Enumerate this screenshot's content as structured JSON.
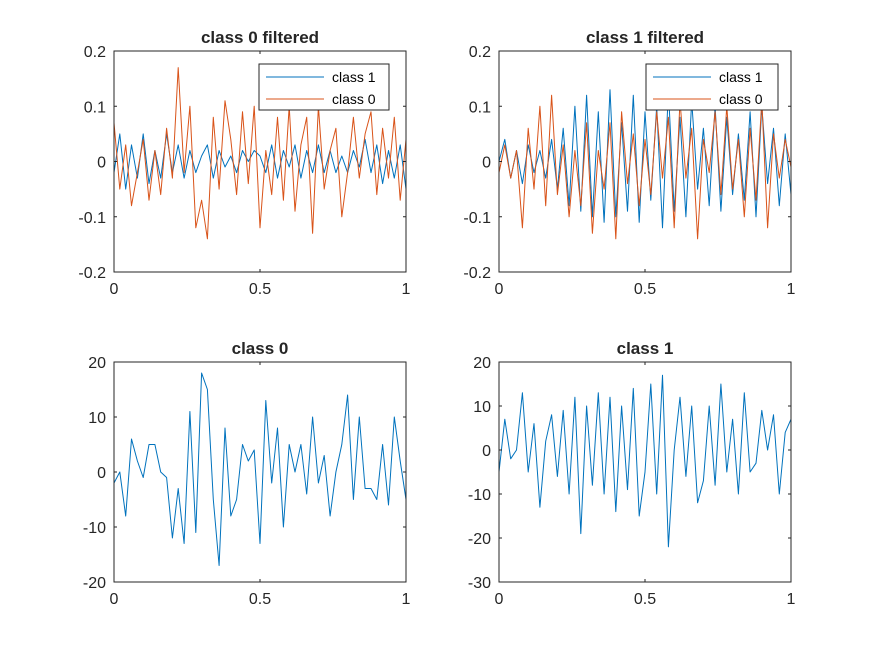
{
  "colors": {
    "class1": "#0072BD",
    "class0": "#D95319",
    "axis": "#262626"
  },
  "chart_data": [
    {
      "type": "line",
      "title": "class 0 filtered",
      "xlabel": "",
      "ylabel": "",
      "xlim": [
        0,
        1
      ],
      "ylim": [
        -0.2,
        0.2
      ],
      "xticks": [
        0,
        0.5,
        1
      ],
      "xtick_labels": [
        "0",
        "0.5",
        "1"
      ],
      "yticks": [
        -0.2,
        -0.1,
        0,
        0.1,
        0.2
      ],
      "ytick_labels": [
        "-0.2",
        "-0.1",
        "0",
        "0.1",
        "0.2"
      ],
      "legend": {
        "placement": "top-right",
        "entries": [
          "class 1",
          "class 0"
        ]
      },
      "series": [
        {
          "name": "class 1",
          "color": "#0072BD",
          "x": [
            0,
            0.02,
            0.04,
            0.06,
            0.08,
            0.1,
            0.12,
            0.14,
            0.16,
            0.18,
            0.2,
            0.22,
            0.24,
            0.26,
            0.28,
            0.3,
            0.32,
            0.34,
            0.36,
            0.38,
            0.4,
            0.42,
            0.44,
            0.46,
            0.48,
            0.5,
            0.52,
            0.54,
            0.56,
            0.58,
            0.6,
            0.62,
            0.64,
            0.66,
            0.68,
            0.7,
            0.72,
            0.74,
            0.76,
            0.78,
            0.8,
            0.82,
            0.84,
            0.86,
            0.88,
            0.9,
            0.92,
            0.94,
            0.96,
            0.98,
            1
          ],
          "y": [
            -0.02,
            0.05,
            -0.05,
            0.03,
            -0.03,
            0.05,
            -0.04,
            0.02,
            -0.03,
            0.05,
            -0.02,
            0.03,
            -0.03,
            0.02,
            -0.02,
            0.01,
            0.03,
            -0.03,
            0.02,
            -0.01,
            0.01,
            -0.02,
            0.02,
            0.0,
            0.02,
            0.01,
            -0.02,
            0.03,
            -0.03,
            0.02,
            -0.01,
            0.03,
            -0.03,
            0.02,
            -0.02,
            0.03,
            -0.02,
            0.02,
            -0.02,
            0.01,
            -0.02,
            0.02,
            -0.01,
            0.04,
            -0.02,
            0.03,
            -0.04,
            0.02,
            -0.03,
            0.03,
            -0.05
          ]
        },
        {
          "name": "class 0",
          "color": "#D95319",
          "x": [
            0,
            0.02,
            0.04,
            0.06,
            0.08,
            0.1,
            0.12,
            0.14,
            0.16,
            0.18,
            0.2,
            0.22,
            0.24,
            0.26,
            0.28,
            0.3,
            0.32,
            0.34,
            0.36,
            0.38,
            0.4,
            0.42,
            0.44,
            0.46,
            0.48,
            0.5,
            0.52,
            0.54,
            0.56,
            0.58,
            0.6,
            0.62,
            0.64,
            0.66,
            0.68,
            0.7,
            0.72,
            0.74,
            0.76,
            0.78,
            0.8,
            0.82,
            0.84,
            0.86,
            0.88,
            0.9,
            0.92,
            0.94,
            0.96,
            0.98,
            1
          ],
          "y": [
            0.07,
            -0.05,
            0.03,
            -0.08,
            -0.02,
            0.04,
            -0.07,
            0.02,
            -0.06,
            0.06,
            -0.03,
            0.17,
            -0.02,
            0.1,
            -0.12,
            -0.07,
            -0.14,
            0.08,
            -0.05,
            0.11,
            0.04,
            -0.06,
            0.09,
            -0.04,
            0.1,
            -0.12,
            0.02,
            -0.06,
            0.08,
            -0.07,
            0.1,
            -0.09,
            0.03,
            0.08,
            -0.13,
            0.1,
            -0.05,
            0.02,
            0.06,
            -0.1,
            -0.02,
            0.08,
            -0.03,
            0.05,
            0.09,
            -0.06,
            0.06,
            -0.03,
            0.08,
            -0.07,
            0.04
          ]
        }
      ]
    },
    {
      "type": "line",
      "title": "class 1 filtered",
      "xlabel": "",
      "ylabel": "",
      "xlim": [
        0,
        1
      ],
      "ylim": [
        -0.2,
        0.2
      ],
      "xticks": [
        0,
        0.5,
        1
      ],
      "xtick_labels": [
        "0",
        "0.5",
        "1"
      ],
      "yticks": [
        -0.2,
        -0.1,
        0,
        0.1,
        0.2
      ],
      "ytick_labels": [
        "-0.2",
        "-0.1",
        "0",
        "0.1",
        "0.2"
      ],
      "legend": {
        "placement": "top-right",
        "entries": [
          "class 1",
          "class 0"
        ]
      },
      "series": [
        {
          "name": "class 1",
          "color": "#0072BD",
          "x": [
            0,
            0.02,
            0.04,
            0.06,
            0.08,
            0.1,
            0.12,
            0.14,
            0.16,
            0.18,
            0.2,
            0.22,
            0.24,
            0.26,
            0.28,
            0.3,
            0.32,
            0.34,
            0.36,
            0.38,
            0.4,
            0.42,
            0.44,
            0.46,
            0.48,
            0.5,
            0.52,
            0.54,
            0.56,
            0.58,
            0.6,
            0.62,
            0.64,
            0.66,
            0.68,
            0.7,
            0.72,
            0.74,
            0.76,
            0.78,
            0.8,
            0.82,
            0.84,
            0.86,
            0.88,
            0.9,
            0.92,
            0.94,
            0.96,
            0.98,
            1
          ],
          "y": [
            0.0,
            0.04,
            -0.03,
            0.02,
            -0.04,
            0.03,
            -0.02,
            0.02,
            -0.03,
            0.04,
            -0.05,
            0.06,
            -0.08,
            0.1,
            -0.09,
            0.12,
            -0.1,
            0.09,
            -0.11,
            0.13,
            -0.1,
            0.07,
            -0.09,
            0.12,
            -0.11,
            0.09,
            -0.07,
            0.1,
            -0.12,
            0.13,
            -0.09,
            0.08,
            -0.1,
            0.11,
            -0.05,
            0.06,
            -0.08,
            0.1,
            -0.09,
            0.08,
            -0.06,
            0.05,
            -0.07,
            0.09,
            -0.1,
            0.1,
            -0.04,
            0.06,
            -0.08,
            0.05,
            -0.06
          ]
        },
        {
          "name": "class 0",
          "color": "#D95319",
          "x": [
            0,
            0.02,
            0.04,
            0.06,
            0.08,
            0.1,
            0.12,
            0.14,
            0.16,
            0.18,
            0.2,
            0.22,
            0.24,
            0.26,
            0.28,
            0.3,
            0.32,
            0.34,
            0.36,
            0.38,
            0.4,
            0.42,
            0.44,
            0.46,
            0.48,
            0.5,
            0.52,
            0.54,
            0.56,
            0.58,
            0.6,
            0.62,
            0.64,
            0.66,
            0.68,
            0.7,
            0.72,
            0.74,
            0.76,
            0.78,
            0.8,
            0.82,
            0.84,
            0.86,
            0.88,
            0.9,
            0.92,
            0.94,
            0.96,
            0.98,
            1
          ],
          "y": [
            -0.02,
            0.03,
            -0.03,
            0.02,
            -0.12,
            0.06,
            -0.05,
            0.1,
            -0.08,
            0.12,
            -0.06,
            0.03,
            -0.1,
            0.02,
            -0.08,
            0.07,
            -0.13,
            0.02,
            -0.05,
            0.07,
            -0.14,
            0.09,
            -0.04,
            0.05,
            -0.08,
            0.04,
            -0.06,
            0.09,
            -0.03,
            0.08,
            -0.12,
            0.11,
            -0.03,
            0.06,
            -0.14,
            0.04,
            -0.02,
            0.09,
            -0.06,
            0.1,
            -0.05,
            0.04,
            -0.1,
            0.06,
            -0.07,
            0.11,
            -0.12,
            0.05,
            -0.03,
            0.04,
            -0.01
          ]
        }
      ]
    },
    {
      "type": "line",
      "title": "class 0",
      "xlabel": "",
      "ylabel": "",
      "xlim": [
        0,
        1
      ],
      "ylim": [
        -20,
        20
      ],
      "xticks": [
        0,
        0.5,
        1
      ],
      "xtick_labels": [
        "0",
        "0.5",
        "1"
      ],
      "yticks": [
        -20,
        -10,
        0,
        10,
        20
      ],
      "ytick_labels": [
        "-20",
        "-10",
        "0",
        "10",
        "20"
      ],
      "series": [
        {
          "name": "",
          "color": "#0072BD",
          "x": [
            0,
            0.02,
            0.04,
            0.06,
            0.08,
            0.1,
            0.12,
            0.14,
            0.16,
            0.18,
            0.2,
            0.22,
            0.24,
            0.26,
            0.28,
            0.3,
            0.32,
            0.34,
            0.36,
            0.38,
            0.4,
            0.42,
            0.44,
            0.46,
            0.48,
            0.5,
            0.52,
            0.54,
            0.56,
            0.58,
            0.6,
            0.62,
            0.64,
            0.66,
            0.68,
            0.7,
            0.72,
            0.74,
            0.76,
            0.78,
            0.8,
            0.82,
            0.84,
            0.86,
            0.88,
            0.9,
            0.92,
            0.94,
            0.96,
            0.98,
            1
          ],
          "y": [
            -2,
            0,
            -8,
            6,
            2,
            -1,
            5,
            5,
            0,
            -1,
            -12,
            -3,
            -13,
            11,
            -11,
            18,
            15,
            -5,
            -17,
            8,
            -8,
            -5,
            5,
            2,
            4,
            -13,
            13,
            -2,
            8,
            -10,
            5,
            0,
            5,
            -4,
            10,
            -2,
            3,
            -8,
            0,
            5,
            14,
            -5,
            10,
            -3,
            -3,
            -5,
            5,
            -6,
            10,
            2,
            -5
          ]
        }
      ]
    },
    {
      "type": "line",
      "title": "class 1",
      "xlabel": "",
      "ylabel": "",
      "xlim": [
        0,
        1
      ],
      "ylim": [
        -30,
        20
      ],
      "xticks": [
        0,
        0.5,
        1
      ],
      "xtick_labels": [
        "0",
        "0.5",
        "1"
      ],
      "yticks": [
        -30,
        -20,
        -10,
        0,
        10,
        20
      ],
      "ytick_labels": [
        "-30",
        "-20",
        "-10",
        "0",
        "10",
        "20"
      ],
      "series": [
        {
          "name": "",
          "color": "#0072BD",
          "x": [
            0,
            0.02,
            0.04,
            0.06,
            0.08,
            0.1,
            0.12,
            0.14,
            0.16,
            0.18,
            0.2,
            0.22,
            0.24,
            0.26,
            0.28,
            0.3,
            0.32,
            0.34,
            0.36,
            0.38,
            0.4,
            0.42,
            0.44,
            0.46,
            0.48,
            0.5,
            0.52,
            0.54,
            0.56,
            0.58,
            0.6,
            0.62,
            0.64,
            0.66,
            0.68,
            0.7,
            0.72,
            0.74,
            0.76,
            0.78,
            0.8,
            0.82,
            0.84,
            0.86,
            0.88,
            0.9,
            0.92,
            0.94,
            0.96,
            0.98,
            1
          ],
          "y": [
            -5,
            7,
            -2,
            0,
            13,
            -5,
            6,
            -13,
            2,
            8,
            -6,
            9,
            -10,
            12,
            -19,
            10,
            -8,
            13,
            -10,
            12,
            -14,
            10,
            -9,
            14,
            -15,
            -5,
            15,
            -10,
            17,
            -22,
            0,
            12,
            -6,
            10,
            -12,
            -7,
            10,
            -8,
            15,
            -5,
            7,
            -10,
            13,
            -5,
            -3,
            9,
            0,
            8,
            -10,
            4,
            7
          ]
        }
      ]
    }
  ]
}
